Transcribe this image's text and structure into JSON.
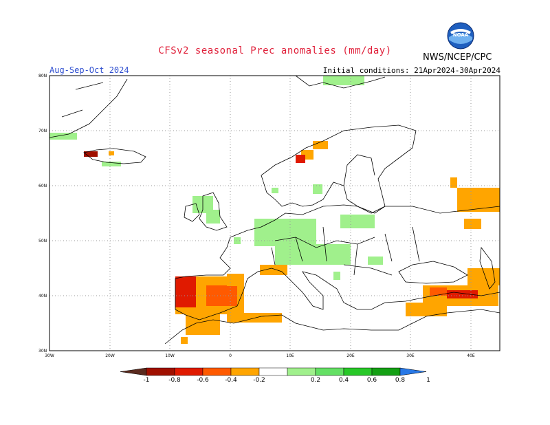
{
  "header": {
    "title": "CFSv2 seasonal Prec anomalies (mm/day)",
    "season": "Aug-Sep-Oct 2024",
    "initial_conditions": "Initial conditions: 21Apr2024-30Apr2024",
    "org": "NWS/NCEP/CPC",
    "logo_text": "NOAA"
  },
  "axes": {
    "lat_ticks": [
      "80N",
      "70N",
      "60N",
      "50N",
      "40N",
      "30N"
    ],
    "lon_ticks": [
      "30W",
      "20W",
      "10W",
      "0",
      "10E",
      "20E",
      "30E",
      "40E"
    ]
  },
  "colorbar": {
    "labels": [
      "-1",
      "-0.8",
      "-0.6",
      "-0.4",
      "-0.2",
      "0.2",
      "0.4",
      "0.6",
      "0.8",
      "1"
    ],
    "colors": [
      "#5a2a1e",
      "#a01000",
      "#e01a00",
      "#ff5a00",
      "#ffa500",
      "#ffffff",
      "#a0f08c",
      "#64e064",
      "#28c828",
      "#14a014",
      "#2878e6"
    ]
  },
  "colors": {
    "light_green": "#a0f08c",
    "orange": "#ffa500",
    "red_orange": "#ff5a00",
    "red": "#e01a00",
    "dark_red": "#a01000"
  }
}
